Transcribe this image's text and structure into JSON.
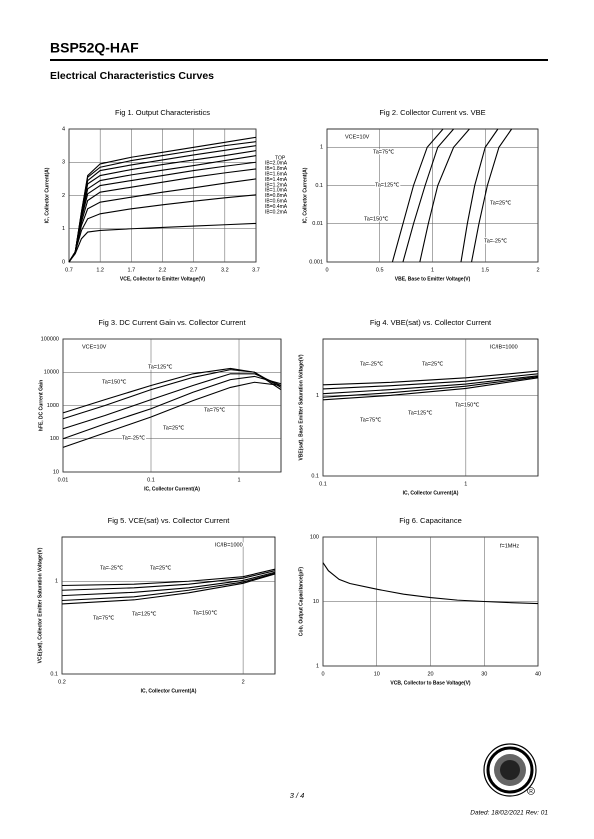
{
  "header": {
    "title": "BSP52Q-HAF"
  },
  "section_title": "Electrical Characteristics Curves",
  "chart_data": [
    {
      "type": "line",
      "title": "Fig 1. Output Characteristics",
      "xlabel": "VCE, Collector to Emitter Voltage(V)",
      "ylabel": "IC, Collector Current(A)",
      "color": "#000000",
      "grid": true,
      "xlim": [
        0.7,
        3.7
      ],
      "xticks": [
        0.7,
        1.2,
        1.7,
        2.2,
        2.7,
        3.2,
        3.7
      ],
      "ylim": [
        0,
        4
      ],
      "yticks": [
        0,
        1,
        2,
        3,
        4
      ],
      "legend_title": "TOP",
      "x": [
        0.7,
        0.8,
        0.9,
        1.0,
        1.2,
        1.7,
        2.2,
        2.7,
        3.2,
        3.7
      ],
      "series": [
        {
          "name": "IB=2.0mA",
          "values": [
            0,
            0.3,
            1.5,
            2.6,
            2.95,
            3.15,
            3.3,
            3.45,
            3.6,
            3.75
          ]
        },
        {
          "name": "IB=1.8mA",
          "values": [
            0,
            0.3,
            1.5,
            2.55,
            2.85,
            3.05,
            3.2,
            3.35,
            3.5,
            3.62
          ]
        },
        {
          "name": "IB=1.6mA",
          "values": [
            0,
            0.3,
            1.45,
            2.45,
            2.75,
            2.92,
            3.07,
            3.22,
            3.36,
            3.5
          ]
        },
        {
          "name": "IB=1.4mA",
          "values": [
            0,
            0.3,
            1.4,
            2.35,
            2.6,
            2.78,
            2.93,
            3.07,
            3.2,
            3.35
          ]
        },
        {
          "name": "IB=1.2mA",
          "values": [
            0,
            0.3,
            1.35,
            2.2,
            2.45,
            2.62,
            2.76,
            2.9,
            3.05,
            3.2
          ]
        },
        {
          "name": "IB=1.0mA",
          "values": [
            0,
            0.3,
            1.3,
            2.05,
            2.3,
            2.45,
            2.6,
            2.75,
            2.88,
            3.0
          ]
        },
        {
          "name": "IB=0.8mA",
          "values": [
            0,
            0.3,
            1.2,
            1.85,
            2.1,
            2.25,
            2.4,
            2.55,
            2.68,
            2.8
          ]
        },
        {
          "name": "IB=0.6mA",
          "values": [
            0,
            0.3,
            1.1,
            1.6,
            1.8,
            1.95,
            2.1,
            2.23,
            2.37,
            2.5
          ]
        },
        {
          "name": "IB=0.4mA",
          "values": [
            0,
            0.3,
            0.95,
            1.3,
            1.45,
            1.6,
            1.72,
            1.83,
            1.93,
            2.02
          ]
        },
        {
          "name": "IB=0.2mA",
          "values": [
            0,
            0.25,
            0.7,
            0.9,
            0.95,
            1.0,
            1.04,
            1.08,
            1.12,
            1.16
          ]
        }
      ]
    },
    {
      "type": "line",
      "title": "Fig 2. Collector Current vs. VBE",
      "xlabel": "VBE, Base to Emitter Voltage(V)",
      "ylabel": "IC, Collector Current(A)",
      "color": "#000000",
      "grid": true,
      "xlim": [
        0,
        2
      ],
      "xticks": [
        0,
        0.5,
        1,
        1.5,
        2
      ],
      "ylim": [
        0.001,
        3
      ],
      "yticks": [
        0.001,
        0.01,
        0.1,
        1
      ],
      "yscale": "log",
      "annotations": [
        "VCE=10V"
      ],
      "series": [
        {
          "name": "Ta=150℃",
          "x": [
            0.62,
            0.72,
            0.82,
            0.95,
            1.1
          ],
          "values": [
            0.001,
            0.01,
            0.1,
            1,
            3
          ]
        },
        {
          "name": "Ta=125℃",
          "x": [
            0.72,
            0.82,
            0.93,
            1.05,
            1.2
          ],
          "values": [
            0.001,
            0.01,
            0.1,
            1,
            3
          ]
        },
        {
          "name": "Ta=75℃",
          "x": [
            0.88,
            0.96,
            1.05,
            1.2,
            1.35
          ],
          "values": [
            0.001,
            0.01,
            0.1,
            1,
            3
          ]
        },
        {
          "name": "Ta=25℃",
          "x": [
            1.27,
            1.33,
            1.4,
            1.5,
            1.62
          ],
          "values": [
            0.001,
            0.01,
            0.1,
            1,
            3
          ]
        },
        {
          "name": "Ta=-25℃",
          "x": [
            1.37,
            1.44,
            1.52,
            1.63,
            1.75
          ],
          "values": [
            0.001,
            0.01,
            0.1,
            1,
            3
          ]
        }
      ]
    },
    {
      "type": "line",
      "title": "Fig 3. DC Current Gain vs. Collector Current",
      "xlabel": "IC, Collector Current(A)",
      "ylabel": "hFE, DC Current Gain",
      "color": "#000000",
      "grid": true,
      "xlim": [
        0.01,
        3
      ],
      "xticks": [
        0.01,
        0.1,
        1
      ],
      "xscale": "log",
      "ylim": [
        10,
        100000
      ],
      "yticks": [
        10,
        100,
        1000,
        10000,
        100000
      ],
      "yscale": "log",
      "annotations": [
        "VCE=10V"
      ],
      "x": [
        0.01,
        0.03,
        0.1,
        0.3,
        0.8,
        1.5,
        3
      ],
      "series": [
        {
          "name": "Ta=150℃",
          "values": [
            600,
            1500,
            4000,
            9000,
            13000,
            10000,
            3000
          ]
        },
        {
          "name": "Ta=125℃",
          "values": [
            400,
            1000,
            3000,
            7000,
            12000,
            10000,
            3500
          ]
        },
        {
          "name": "Ta=75℃",
          "values": [
            200,
            500,
            1500,
            4000,
            9000,
            9000,
            4000
          ]
        },
        {
          "name": "Ta=25℃",
          "values": [
            100,
            280,
            800,
            2500,
            6000,
            7500,
            4500
          ]
        },
        {
          "name": "Ta=-25℃",
          "values": [
            55,
            150,
            450,
            1400,
            3500,
            5000,
            4000
          ]
        }
      ]
    },
    {
      "type": "line",
      "title": "Fig 4. VBE(sat) vs. Collector Current",
      "xlabel": "IC, Collector Current(A)",
      "ylabel": "VBE(sat), Base Emitter Saturation Voltage(V)",
      "color": "#000000",
      "grid": true,
      "xlim": [
        0.1,
        3.2
      ],
      "xticks": [
        0.1,
        1
      ],
      "xscale": "log",
      "ylim": [
        0.1,
        5
      ],
      "yticks": [
        0.1,
        1
      ],
      "yscale": "log",
      "annotations": [
        "IC/IB=1000"
      ],
      "x": [
        0.1,
        0.3,
        1,
        3.2
      ],
      "series": [
        {
          "name": "Ta=-25℃",
          "values": [
            1.35,
            1.45,
            1.65,
            2.0
          ]
        },
        {
          "name": "Ta=25℃",
          "values": [
            1.2,
            1.32,
            1.5,
            1.85
          ]
        },
        {
          "name": "Ta=75℃",
          "values": [
            1.05,
            1.18,
            1.38,
            1.75
          ]
        },
        {
          "name": "Ta=125℃",
          "values": [
            0.95,
            1.08,
            1.3,
            1.7
          ]
        },
        {
          "name": "Ta=150℃",
          "values": [
            0.88,
            1.0,
            1.22,
            1.65
          ]
        }
      ]
    },
    {
      "type": "line",
      "title": "Fig 5. VCE(sat) vs. Collector Current",
      "xlabel": "IC, Collector Current(A)",
      "ylabel": "VCE(sat), Collector Emitter Saturation Voltage(V)",
      "color": "#000000",
      "grid": true,
      "xlim": [
        0.2,
        3
      ],
      "xticks": [
        0.2,
        2
      ],
      "xscale": "log",
      "ylim": [
        0.1,
        3
      ],
      "yticks": [
        0.1,
        1
      ],
      "yscale": "log",
      "annotations": [
        "IC/IB=1000"
      ],
      "x": [
        0.2,
        0.5,
        1,
        2,
        3
      ],
      "series": [
        {
          "name": "Ta=-25℃",
          "values": [
            0.9,
            0.93,
            1.0,
            1.12,
            1.35
          ]
        },
        {
          "name": "Ta=25℃",
          "values": [
            0.8,
            0.85,
            0.93,
            1.08,
            1.3
          ]
        },
        {
          "name": "Ta=75℃",
          "values": [
            0.7,
            0.76,
            0.85,
            1.02,
            1.25
          ]
        },
        {
          "name": "Ta=125℃",
          "values": [
            0.62,
            0.68,
            0.8,
            0.98,
            1.22
          ]
        },
        {
          "name": "Ta=150℃",
          "values": [
            0.57,
            0.63,
            0.75,
            0.95,
            1.2
          ]
        }
      ]
    },
    {
      "type": "line",
      "title": "Fig 6. Capacitance",
      "xlabel": "VCB, Collector to Base Voltage(V)",
      "ylabel": "Cob, Output Capacitance(pF)",
      "color": "#000000",
      "grid": true,
      "xlim": [
        0,
        40
      ],
      "xticks": [
        0,
        10,
        20,
        30,
        40
      ],
      "ylim": [
        1,
        100
      ],
      "yticks": [
        1,
        10,
        100
      ],
      "yscale": "log",
      "annotations": [
        "f=1MHz"
      ],
      "x": [
        0,
        1,
        3,
        5,
        10,
        15,
        20,
        25,
        30,
        35,
        40
      ],
      "series": [
        {
          "name": "Cob",
          "values": [
            40,
            30,
            22,
            19,
            15.5,
            13,
            11.5,
            10.5,
            10,
            9.6,
            9.3
          ]
        }
      ]
    }
  ],
  "footer": {
    "page": "3 / 4",
    "dated": "Dated: 18/02/2021  Rev: 01"
  }
}
